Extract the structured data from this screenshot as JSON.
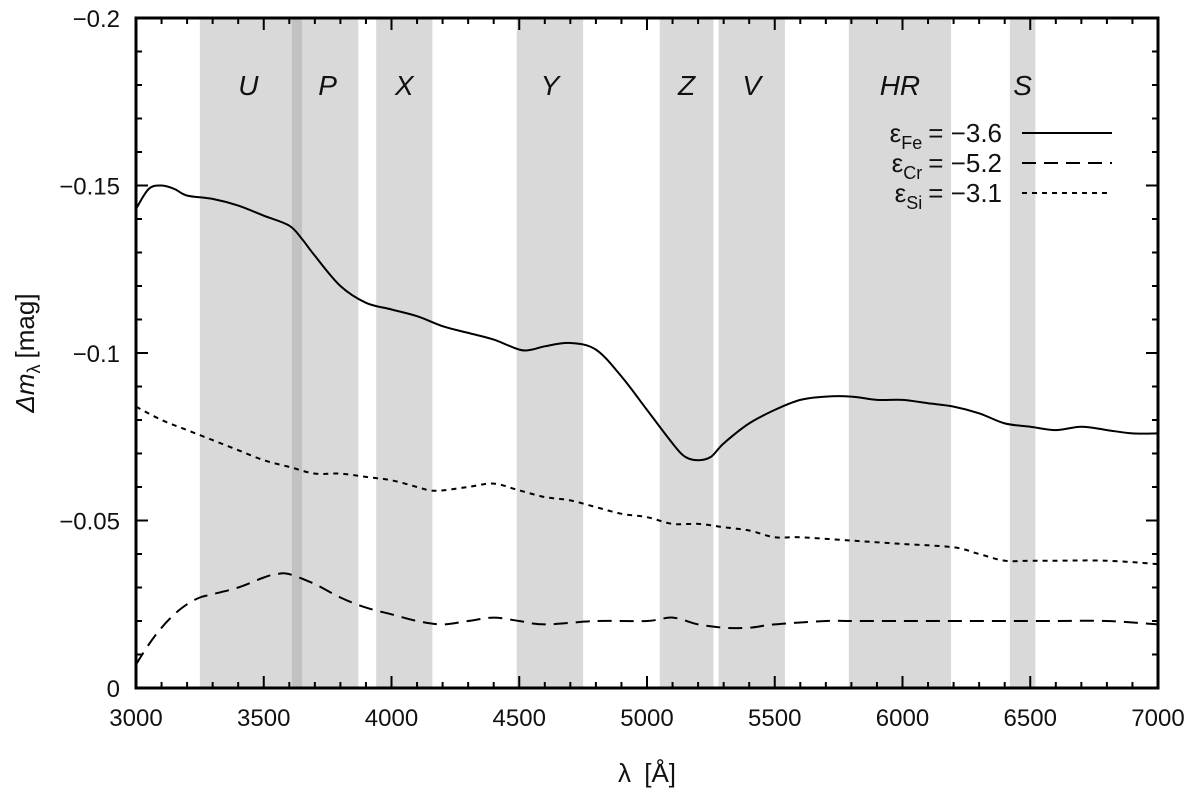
{
  "chart_data": {
    "type": "line",
    "xlabel": {
      "symbol": "λ",
      "unit": "[Å]"
    },
    "ylabel": {
      "symbol": "Δm",
      "subscript": "λ",
      "unit": "[mag]"
    },
    "xlim": [
      3000,
      7000
    ],
    "ylim": [
      0,
      -0.2
    ],
    "y_inverted": true,
    "grid": false,
    "legend_position": "top-right",
    "x_ticks": [
      3000,
      3500,
      4000,
      4500,
      5000,
      5500,
      6000,
      6500,
      7000
    ],
    "x_tick_labels": [
      "3000",
      "3500",
      "4000",
      "4500",
      "5000",
      "5500",
      "6000",
      "6500",
      "7000"
    ],
    "y_ticks": [
      0,
      -0.05,
      -0.1,
      -0.15,
      -0.2
    ],
    "y_tick_labels": [
      "0",
      "−0.05",
      "−0.1",
      "−0.15",
      "−0.2"
    ],
    "bands": [
      {
        "label": "U",
        "x0": 3250,
        "x1": 3630,
        "color": "#d9d9d9"
      },
      {
        "label": "P",
        "x0": 3630,
        "x1": 3870,
        "color": "#d9d9d9"
      },
      {
        "label": "X",
        "x0": 3940,
        "x1": 4160,
        "color": "#d9d9d9"
      },
      {
        "label": "Y",
        "x0": 4490,
        "x1": 4750,
        "color": "#d9d9d9"
      },
      {
        "label": "Z",
        "x0": 5050,
        "x1": 5260,
        "color": "#d9d9d9"
      },
      {
        "label": "V",
        "x0": 5280,
        "x1": 5540,
        "color": "#d9d9d9"
      },
      {
        "label": "HR",
        "x0": 5790,
        "x1": 6190,
        "color": "#d9d9d9"
      },
      {
        "label": "S",
        "x0": 6420,
        "x1": 6520,
        "color": "#d9d9d9"
      }
    ],
    "band_overlap": {
      "x0": 3610,
      "x1": 3650,
      "color": "#c2c2c2"
    },
    "series": [
      {
        "name": "ε",
        "name_sub": "Fe",
        "value": "= −3.6",
        "dash": "solid",
        "x": [
          3000,
          3050,
          3100,
          3150,
          3200,
          3300,
          3400,
          3500,
          3600,
          3650,
          3700,
          3800,
          3900,
          4000,
          4100,
          4200,
          4300,
          4400,
          4500,
          4550,
          4600,
          4700,
          4800,
          4900,
          5000,
          5100,
          5150,
          5200,
          5250,
          5300,
          5400,
          5500,
          5600,
          5700,
          5800,
          5900,
          6000,
          6100,
          6200,
          6300,
          6400,
          6500,
          6600,
          6700,
          6800,
          6900,
          7000
        ],
        "y": [
          -0.143,
          -0.149,
          -0.15,
          -0.149,
          -0.147,
          -0.146,
          -0.144,
          -0.141,
          -0.138,
          -0.134,
          -0.129,
          -0.12,
          -0.115,
          -0.113,
          -0.111,
          -0.108,
          -0.106,
          -0.104,
          -0.101,
          -0.101,
          -0.102,
          -0.103,
          -0.101,
          -0.093,
          -0.083,
          -0.073,
          -0.069,
          -0.068,
          -0.069,
          -0.073,
          -0.079,
          -0.083,
          -0.086,
          -0.087,
          -0.087,
          -0.086,
          -0.086,
          -0.085,
          -0.084,
          -0.082,
          -0.079,
          -0.078,
          -0.077,
          -0.078,
          -0.077,
          -0.076,
          -0.076
        ]
      },
      {
        "name": "ε",
        "name_sub": "Cr",
        "value": "= −5.2",
        "dash": "long",
        "x": [
          3000,
          3050,
          3100,
          3150,
          3200,
          3250,
          3300,
          3400,
          3500,
          3550,
          3600,
          3700,
          3800,
          3900,
          4000,
          4100,
          4200,
          4300,
          4400,
          4500,
          4600,
          4800,
          5000,
          5100,
          5200,
          5300,
          5400,
          5500,
          5700,
          5800,
          6000,
          6200,
          6400,
          6600,
          6800,
          7000
        ],
        "y": [
          -0.007,
          -0.013,
          -0.018,
          -0.022,
          -0.025,
          -0.027,
          -0.028,
          -0.03,
          -0.033,
          -0.034,
          -0.034,
          -0.031,
          -0.027,
          -0.024,
          -0.022,
          -0.02,
          -0.019,
          -0.02,
          -0.021,
          -0.02,
          -0.019,
          -0.02,
          -0.02,
          -0.021,
          -0.019,
          -0.018,
          -0.018,
          -0.019,
          -0.02,
          -0.02,
          -0.02,
          -0.02,
          -0.02,
          -0.02,
          -0.02,
          -0.019
        ]
      },
      {
        "name": "ε",
        "name_sub": "Si",
        "value": "= −3.1",
        "dash": "short",
        "x": [
          3000,
          3100,
          3200,
          3300,
          3400,
          3500,
          3600,
          3700,
          3800,
          3900,
          4000,
          4100,
          4150,
          4200,
          4300,
          4400,
          4500,
          4600,
          4700,
          4800,
          4900,
          5000,
          5100,
          5200,
          5300,
          5400,
          5500,
          5600,
          5800,
          6000,
          6200,
          6300,
          6400,
          6500,
          6600,
          6800,
          7000
        ],
        "y": [
          -0.084,
          -0.08,
          -0.077,
          -0.074,
          -0.071,
          -0.068,
          -0.066,
          -0.064,
          -0.064,
          -0.063,
          -0.062,
          -0.06,
          -0.059,
          -0.059,
          -0.06,
          -0.061,
          -0.059,
          -0.057,
          -0.056,
          -0.054,
          -0.052,
          -0.051,
          -0.049,
          -0.049,
          -0.048,
          -0.047,
          -0.045,
          -0.045,
          -0.044,
          -0.043,
          -0.042,
          -0.04,
          -0.038,
          -0.038,
          -0.038,
          -0.038,
          -0.037
        ]
      }
    ]
  }
}
